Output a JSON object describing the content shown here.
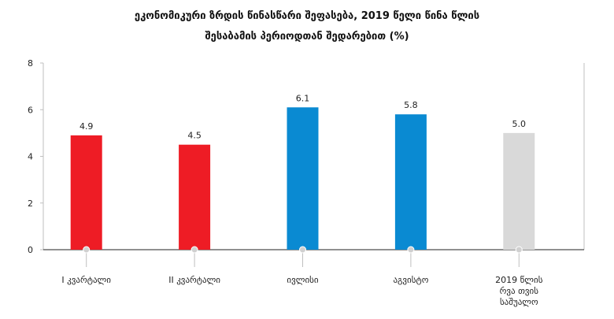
{
  "chart_data": {
    "type": "bar",
    "title_lines": [
      "ეკონომიკური ზრდის წინასწარი შეფასება, 2019 წელი წინა წლის",
      "შესაბამის პერიოდთან შედარებით (%)"
    ],
    "categories": [
      [
        "I კვარტალი"
      ],
      [
        "II კვარტალი"
      ],
      [
        "ივლისი"
      ],
      [
        "აგვისტო"
      ],
      [
        "2019 წლის",
        "რვა თვის",
        "საშუალო"
      ]
    ],
    "values": [
      4.9,
      4.5,
      6.1,
      5.8,
      5.0
    ],
    "value_labels": [
      "4.9",
      "4.5",
      "6.1",
      "5.8",
      "5.0"
    ],
    "colors": [
      "#ee1c25",
      "#ee1c25",
      "#0a8ad2",
      "#0a8ad2",
      "#d9d9d9"
    ],
    "ylim": [
      0,
      8
    ],
    "yticks": [
      0,
      2,
      4,
      6,
      8
    ],
    "grid": false
  }
}
